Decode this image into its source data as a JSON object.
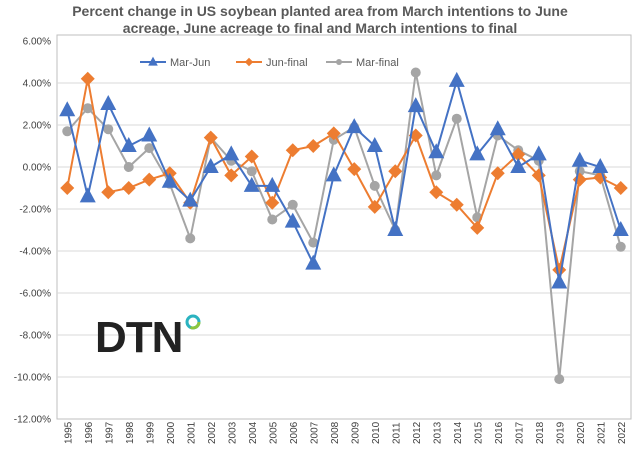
{
  "chart_data": {
    "type": "line",
    "title": [
      "Percent change in US soybean planted area from March intentions to June",
      "acreage, June acreage to final and March intentions to final"
    ],
    "xlabel": "",
    "ylabel": "",
    "ylim": [
      -12,
      6
    ],
    "yticks": [
      6,
      4,
      2,
      0,
      -2,
      -4,
      -6,
      -8,
      -10,
      -12
    ],
    "ytick_labels": [
      "6.00%",
      "4.00%",
      "2.00%",
      "0.00%",
      "-2.00%",
      "-4.00%",
      "-6.00%",
      "-8.00%",
      "-10.00%",
      "-12.00%"
    ],
    "grid": true,
    "legend_position": "top-left",
    "categories": [
      "1995",
      "1996",
      "1997",
      "1998",
      "1999",
      "2000",
      "2001",
      "2002",
      "2003",
      "2004",
      "2005",
      "2006",
      "2007",
      "2008",
      "2009",
      "2010",
      "2011",
      "2012",
      "2013",
      "2014",
      "2015",
      "2016",
      "2017",
      "2018",
      "2019",
      "2020",
      "2021",
      "2022"
    ],
    "series": [
      {
        "name": "Mar-Jun",
        "color": "#4472C4",
        "marker": "triangle",
        "values": [
          2.7,
          -1.4,
          3.0,
          1.0,
          1.5,
          -0.7,
          -1.6,
          0.0,
          0.6,
          -0.9,
          -0.9,
          -2.6,
          -4.6,
          -0.4,
          1.9,
          1.0,
          -3.0,
          2.9,
          0.7,
          4.1,
          0.6,
          1.8,
          0.0,
          0.6,
          -5.5,
          0.3,
          0.0,
          -3.0
        ]
      },
      {
        "name": "Jun-final",
        "color": "#ED7D31",
        "marker": "diamond",
        "values": [
          -1.0,
          4.2,
          -1.2,
          -1.0,
          -0.6,
          -0.3,
          -1.7,
          1.4,
          -0.4,
          0.5,
          -1.7,
          0.8,
          1.0,
          1.6,
          -0.1,
          -1.9,
          -0.2,
          1.5,
          -1.2,
          -1.8,
          -2.9,
          -0.3,
          0.6,
          -0.4,
          -4.9,
          -0.6,
          -0.5,
          -1.0
        ]
      },
      {
        "name": "Mar-final",
        "color": "#A5A5A5",
        "marker": "circle",
        "values": [
          1.7,
          2.8,
          1.8,
          0.0,
          0.9,
          -0.8,
          -3.4,
          1.4,
          0.3,
          -0.2,
          -2.5,
          -1.8,
          -3.6,
          1.3,
          1.9,
          -0.9,
          -3.0,
          4.5,
          -0.4,
          2.3,
          -2.4,
          1.5,
          0.8,
          0.3,
          -10.1,
          -0.2,
          -0.4,
          -3.8
        ]
      }
    ]
  },
  "logo": {
    "text": "DTN",
    "accent": "#2BB3C0"
  }
}
